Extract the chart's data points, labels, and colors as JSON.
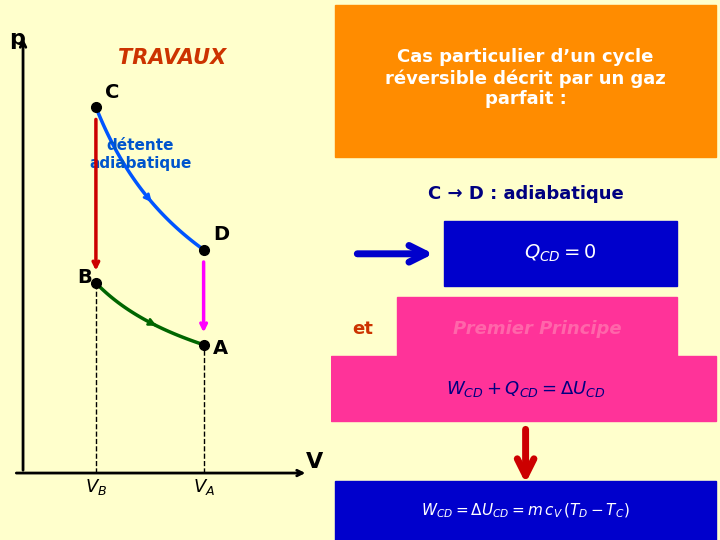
{
  "bg_color": "#FFFFCC",
  "title_box_color": "#FF8C00",
  "title_text": "Cas particulier d’un cycle\nréversible décrit par un gaz\nparfait :",
  "title_text_color": "#FFFFFF",
  "graph_label_travaux": "TRAVAUX",
  "graph_label_travaux_color": "#CC3300",
  "graph_label_detente": "détente\nadiabatique",
  "graph_label_detente_color": "#0055CC",
  "points": {
    "C": [
      0.28,
      0.82
    ],
    "D": [
      0.62,
      0.52
    ],
    "B": [
      0.28,
      0.45
    ],
    "A": [
      0.62,
      0.32
    ]
  },
  "curve_CD_color": "#0055FF",
  "curve_BA_color": "#006600",
  "arrow_CB_color": "#CC0000",
  "arrow_DA_color": "#FF00FF",
  "line_BVb_color": "#000000",
  "line_AVa_color": "#000000",
  "cd_label": "C → D : adiabatique",
  "cd_label_color": "#000080",
  "qcd_box_color": "#0000CC",
  "qcd_text": "$Q_{CD} = 0$",
  "qcd_text_color": "#FFFFFF",
  "blue_arrow_color": "#0000CC",
  "et_text": "et",
  "et_color": "#CC3300",
  "premier_box_color": "#FF3399",
  "premier_text": "Premier Principe",
  "premier_text_color": "#FF66AA",
  "wcd_box_color": "#FF3399",
  "wcd_text": "$W_{CD} + Q_{CD} = \\Delta U_{CD}$",
  "wcd_text_color": "#000080",
  "red_arrow_color": "#CC0000",
  "final_box_color": "#0000CC",
  "final_text": "$W_{CD} = \\Delta U_{CD} = m\\, c_V\\, ( T_D - T_C )$",
  "final_text_color": "#FFFFFF"
}
